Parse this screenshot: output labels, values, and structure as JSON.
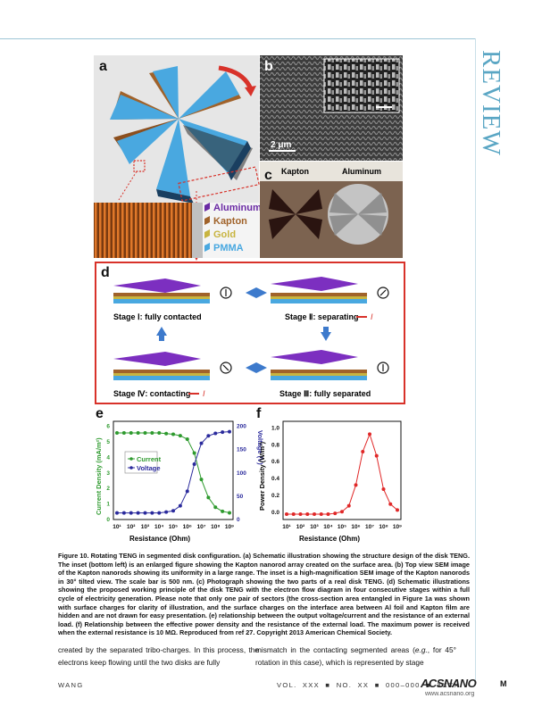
{
  "header": {
    "section": "REVIEW"
  },
  "figure": {
    "panel_a": {
      "label": "a",
      "legend": [
        "Aluminum",
        "Kapton",
        "Gold",
        "PMMA"
      ],
      "colors": {
        "aluminum": "#6a2aa4",
        "kapton": "#a0622a",
        "gold": "#c8b440",
        "pmma": "#49a8e0"
      }
    },
    "panel_b": {
      "label": "b",
      "scale": "2 μm"
    },
    "panel_c": {
      "label": "c",
      "left": "Kapton",
      "right": "Aluminum"
    },
    "panel_d": {
      "label": "d",
      "stage1": "Stage Ⅰ: fully contacted",
      "stage2": "Stage Ⅱ: separating",
      "stage3": "Stage Ⅲ: fully separated",
      "stage4": "Stage Ⅳ: contacting",
      "current_symbol": "I"
    },
    "panel_e": {
      "label": "e",
      "ylabel_left": "Current Density (mA/m²)",
      "ylabel_right": "Voltage (V)",
      "xlabel": "Resistance (Ohm)",
      "legend": [
        "Current",
        "Voltage"
      ],
      "yticks_left": [
        "0",
        "1",
        "2",
        "3",
        "4",
        "5",
        "6"
      ],
      "yticks_right": [
        "0",
        "50",
        "100",
        "150",
        "200"
      ],
      "xticks": [
        "10¹",
        "10²",
        "10³",
        "10⁴",
        "10⁵",
        "10⁶",
        "10⁷",
        "10⁸",
        "10⁹"
      ]
    },
    "panel_f": {
      "label": "f",
      "ylabel": "Power Density (W/m²)",
      "xlabel": "Resistance (Ohm)",
      "yticks": [
        "0.0",
        "0.2",
        "0.4",
        "0.6",
        "0.8",
        "1.0"
      ],
      "xticks": [
        "10¹",
        "10²",
        "10³",
        "10⁴",
        "10⁵",
        "10⁶",
        "10⁷",
        "10⁸",
        "10⁹"
      ]
    }
  },
  "chart_data": [
    {
      "type": "line",
      "title": "",
      "xlabel": "Resistance (Ohm)",
      "ylabel": "Current Density (mA/m²)",
      "ylabel2": "Voltage (V)",
      "x": [
        1,
        1.5,
        2,
        2.5,
        3,
        3.5,
        4,
        4.5,
        5,
        5.5,
        6,
        6.5,
        7,
        7.5,
        8,
        8.5,
        9
      ],
      "ylim": [
        0,
        6.3
      ],
      "y2lim": [
        0,
        210
      ],
      "series": [
        {
          "name": "Current",
          "axis": "left",
          "color": "#2e9a2e",
          "values": [
            5.85,
            5.85,
            5.85,
            5.85,
            5.85,
            5.85,
            5.85,
            5.8,
            5.75,
            5.65,
            5.4,
            4.4,
            2.5,
            1.2,
            0.5,
            0.2,
            0.1
          ]
        },
        {
          "name": "Voltage",
          "axis": "right",
          "color": "#2a2a9c",
          "values": [
            3,
            3,
            3,
            3,
            3,
            3,
            3,
            5,
            8,
            20,
            55,
            120,
            170,
            188,
            194,
            197,
            198
          ]
        }
      ]
    },
    {
      "type": "line",
      "title": "",
      "xlabel": "Resistance (Ohm)",
      "ylabel": "Power Density (W/m²)",
      "x": [
        1,
        1.5,
        2,
        2.5,
        3,
        3.5,
        4,
        4.5,
        5,
        5.5,
        6,
        6.5,
        7,
        7.5,
        8,
        8.5,
        9
      ],
      "ylim": [
        0,
        1.05
      ],
      "series": [
        {
          "name": "Power",
          "color": "#e02828",
          "values": [
            0,
            0,
            0,
            0,
            0,
            0,
            0,
            0.01,
            0.03,
            0.1,
            0.35,
            0.75,
            0.96,
            0.7,
            0.3,
            0.12,
            0.05
          ]
        }
      ]
    }
  ],
  "caption": {
    "lead": "Figure 10.",
    "text": " Rotating TENG in segmented disk configuration. (a) Schematic illustration showing the structure design of the disk TENG. The inset (bottom left) is an enlarged figure showing the Kapton nanorod array created on the surface area. (b) Top view SEM image of the Kapton nanorods showing its uniformity in a large range. The inset is a high-magnification SEM image of the Kapton nanorods in 30° tilted view. The scale bar is 500 nm. (c) Photograph showing the two parts of a real disk TENG. (d) Schematic illustrations showing the proposed working principle of the disk TENG with the electron flow diagram in four consecutive stages within a full cycle of electricity generation. Please note that only one pair of sectors (the cross-section area entangled in Figure 1a was shown with surface charges for clarity of illustration, and the surface charges on the interface area between Al foil and Kapton film are hidden and are not drawn for easy presentation. (e) relationship between the output voltage/current and the resistance of an external load. (f) Relationship between the effective power density and the resistance of the external load. The maximum power is received when the external resistance is 10 MΩ. Reproduced from ref 27. Copyright 2013 American Chemical Society."
  },
  "body": {
    "left": "created by the separated tribo-charges. In this process, the electrons keep flowing until the two disks are fully",
    "right_a": "mismatch in the contacting segmented areas (",
    "right_eg": "e.g.",
    "right_b": ", for 45° rotation in this case), which is represented by stage"
  },
  "footer": {
    "author": "WANG",
    "vol": "VOL. XXX",
    "no": "NO. XX",
    "pages": "000–000",
    "year": "XXXX",
    "logo": "ACSNANO",
    "url": "www.acsnano.org",
    "page": "M"
  }
}
